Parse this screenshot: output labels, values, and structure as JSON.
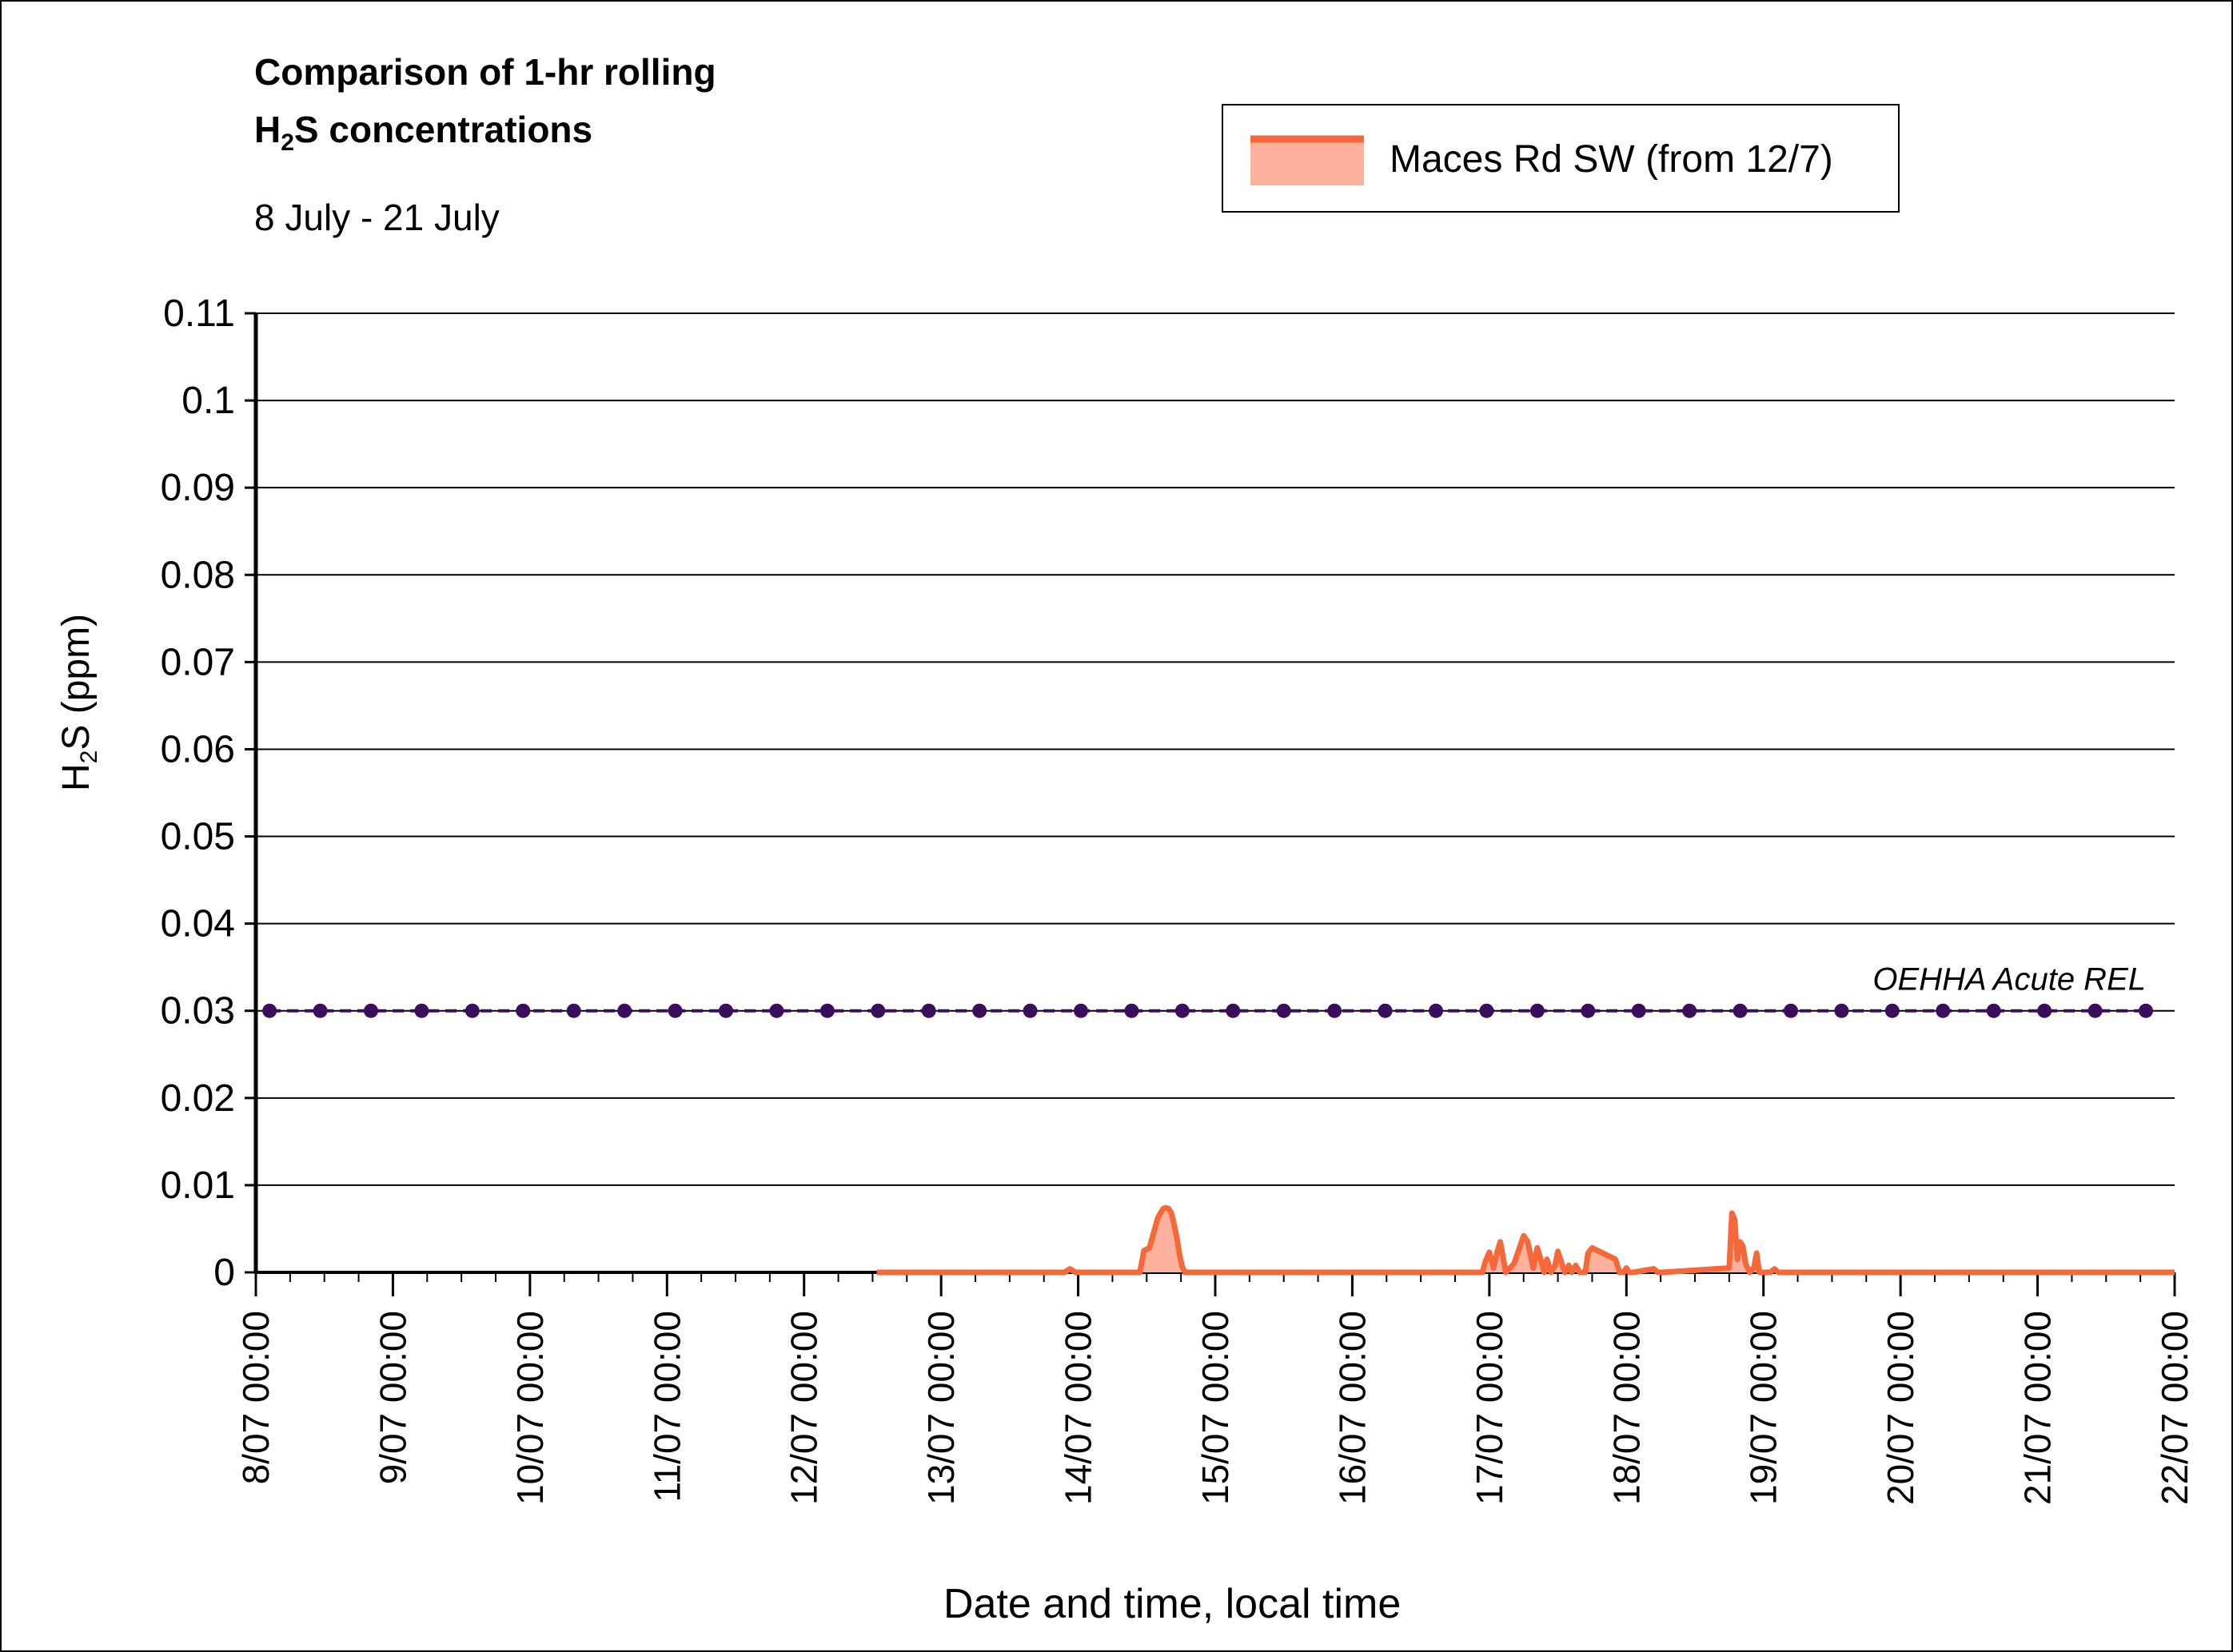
{
  "chart_data": {
    "type": "area",
    "title_line1": "Comparison of 1-hr rolling",
    "title_line2_prefix": "H",
    "title_line2_sub": "2",
    "title_line2_suffix": "S concentrations",
    "subtitle": "8 July - 21 July",
    "ylabel_prefix": "H",
    "ylabel_sub": "2",
    "ylabel_suffix": "S (ppm)",
    "xlabel": "Date and time, local time",
    "ylim": [
      0,
      0.11
    ],
    "yticks": [
      "0",
      "0.01",
      "0.02",
      "0.03",
      "0.04",
      "0.05",
      "0.06",
      "0.07",
      "0.08",
      "0.09",
      "0.1",
      "0.11"
    ],
    "xlim_days": [
      8,
      22
    ],
    "xticks": [
      "8/07 00:00",
      "9/07 00:00",
      "10/07 00:00",
      "11/07 00:00",
      "12/07 00:00",
      "13/07 00:00",
      "14/07 00:00",
      "15/07 00:00",
      "16/07 00:00",
      "17/07 00:00",
      "18/07 00:00",
      "19/07 00:00",
      "20/07 00:00",
      "21/07 00:00",
      "22/07 00:00"
    ],
    "grid": true,
    "legend_position": "top-right",
    "series": [
      {
        "name": "Maces Rd SW (from 12/7)",
        "kind": "area",
        "line_color": "#f4683a",
        "fill_color": "#fbb19b",
        "x_days": [
          12.53,
          13.9,
          13.94,
          13.98,
          14.45,
          14.48,
          14.52,
          14.55,
          14.58,
          14.6,
          14.62,
          14.64,
          14.66,
          14.68,
          14.7,
          14.72,
          14.74,
          14.76,
          14.78,
          14.8,
          16.95,
          16.97,
          17.0,
          17.03,
          17.06,
          17.08,
          17.12,
          17.18,
          17.22,
          17.25,
          17.28,
          17.3,
          17.32,
          17.35,
          17.38,
          17.4,
          17.42,
          17.45,
          17.48,
          17.5,
          17.55,
          17.58,
          17.6,
          17.63,
          17.66,
          17.7,
          17.72,
          17.75,
          17.92,
          17.95,
          17.98,
          18.0,
          18.02,
          18.05,
          18.2,
          18.23,
          18.26,
          18.75,
          18.77,
          18.79,
          18.81,
          18.83,
          18.85,
          18.87,
          18.9,
          18.93,
          18.95,
          18.97,
          19.05,
          19.08,
          19.11,
          22.0
        ],
        "y": [
          0,
          0,
          0.0004,
          0,
          0,
          0.0025,
          0.0028,
          0.0045,
          0.0062,
          0.0068,
          0.0073,
          0.0074,
          0.0073,
          0.0068,
          0.0055,
          0.004,
          0.002,
          0.0006,
          0,
          0,
          0,
          0.0012,
          0.0023,
          0.0005,
          0.0025,
          0.0035,
          0,
          0.001,
          0.0028,
          0.0042,
          0.0035,
          0.002,
          0.0005,
          0.0028,
          0.0012,
          0,
          0.0015,
          0,
          0.0008,
          0.0024,
          0,
          0.0008,
          0,
          0.0008,
          0,
          0,
          0.0022,
          0.0028,
          0.0015,
          0,
          0,
          0.0005,
          0,
          0,
          0.0004,
          0,
          0,
          0.0005,
          0.0068,
          0.006,
          0.0015,
          0.0035,
          0.003,
          0.001,
          0,
          0.0005,
          0.0022,
          0,
          0,
          0.0004,
          0,
          0
        ]
      },
      {
        "name": "OEHHA Acute REL",
        "kind": "line-markers",
        "color": "#3b0e5c",
        "x_days": [
          8.1,
          8.47,
          8.84,
          9.21,
          9.58,
          9.95,
          10.32,
          10.69,
          11.06,
          11.43,
          11.8,
          12.17,
          12.54,
          12.91,
          13.28,
          13.65,
          14.02,
          14.39,
          14.76,
          15.13,
          15.5,
          15.87,
          16.24,
          16.61,
          16.98,
          17.35,
          17.72,
          18.09,
          18.46,
          18.83,
          19.2,
          19.57,
          19.94,
          20.31,
          20.68,
          21.05,
          21.42,
          21.79
        ],
        "y_constant": 0.03,
        "annotation": "OEHHA Acute REL"
      }
    ]
  }
}
